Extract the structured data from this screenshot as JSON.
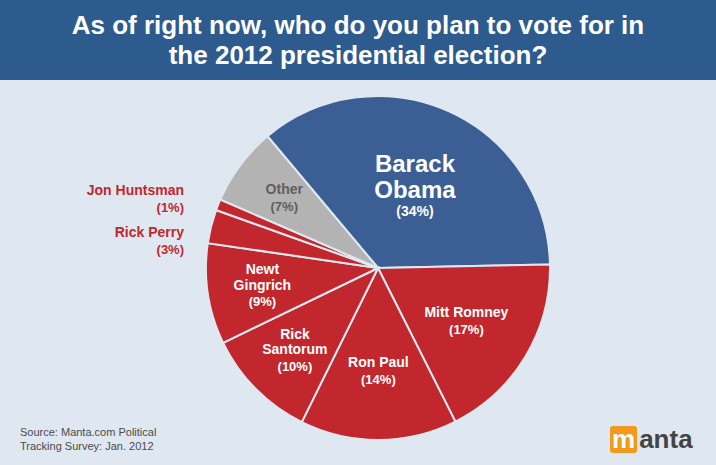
{
  "chart_data": {
    "type": "pie",
    "title": "As of right now, who do you plan to vote for in the 2012 presidential election?",
    "categories": [
      "Barack Obama",
      "Mitt Romney",
      "Ron Paul",
      "Rick Santorum",
      "Newt Gingrich",
      "Rick Perry",
      "Jon Huntsman",
      "Other"
    ],
    "values": [
      34,
      17,
      14,
      10,
      9,
      3,
      1,
      7
    ],
    "value_labels": [
      "(34%)",
      "(17%)",
      "(14%)",
      "(10%)",
      "(9%)",
      "(3%)",
      "(1%)",
      "(7%)"
    ],
    "colors": [
      "#3b5e95",
      "#c1272d",
      "#c1272d",
      "#c1272d",
      "#c1272d",
      "#c1272d",
      "#c1272d",
      "#b3b3b3"
    ],
    "data_labels": true,
    "source": "Source: Manta.com Political Tracking Survey: Jan. 2012",
    "logo": "manta"
  }
}
